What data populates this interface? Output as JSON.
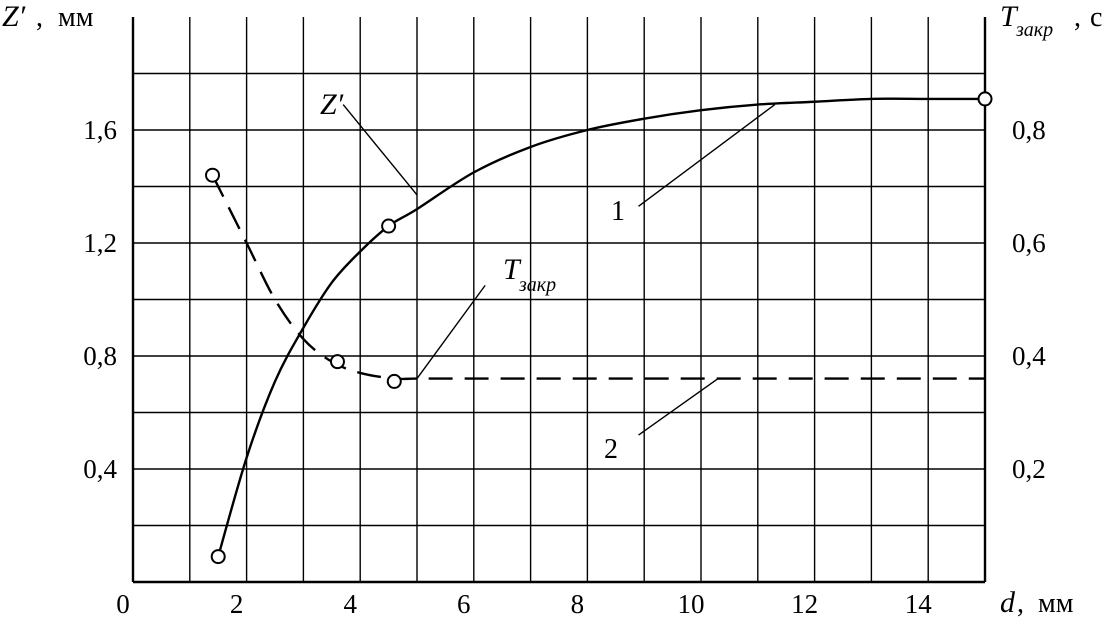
{
  "chart_data": {
    "type": "line",
    "x_axis": {
      "label": "d",
      "unit": "мм",
      "range": [
        0,
        15
      ],
      "ticks": [
        "0",
        "2",
        "4",
        "6",
        "8",
        "10",
        "12",
        "14"
      ]
    },
    "y_left": {
      "label": "Z′",
      "unit": "мм",
      "range": [
        0,
        2
      ],
      "ticks": [
        "0,4",
        "0,8",
        "1,2",
        "1,6"
      ]
    },
    "y_right": {
      "label": "T",
      "label_sub": "закр",
      "unit": "с",
      "range": [
        0,
        1
      ],
      "ticks": [
        "0,2",
        "0,4",
        "0,6",
        "0,8"
      ]
    },
    "grid": true,
    "series": [
      {
        "name": "Z′",
        "axis": "left",
        "curve_number": "1",
        "style": "solid",
        "x": [
          1.5,
          2,
          2.5,
          3,
          3.5,
          4,
          4.5,
          5,
          6,
          7,
          8,
          9,
          10,
          11,
          12,
          13,
          14,
          15
        ],
        "y": [
          0.09,
          0.44,
          0.71,
          0.9,
          1.06,
          1.17,
          1.26,
          1.32,
          1.45,
          1.54,
          1.6,
          1.64,
          1.67,
          1.69,
          1.7,
          1.71,
          1.71,
          1.71
        ],
        "markers_x": [
          1.5,
          4.5,
          15
        ],
        "markers_y": [
          0.09,
          1.26,
          1.71
        ]
      },
      {
        "name": "T",
        "name_sub": "закр",
        "axis": "right",
        "curve_number": "2",
        "style": "dashed",
        "x": [
          1.4,
          2,
          2.5,
          3,
          3.5,
          4,
          4.6,
          5,
          6,
          8,
          10,
          12,
          14,
          15
        ],
        "y": [
          0.72,
          0.6,
          0.5,
          0.43,
          0.39,
          0.37,
          0.36,
          0.36,
          0.36,
          0.36,
          0.36,
          0.36,
          0.36,
          0.36
        ],
        "markers_x": [
          1.4,
          3.6,
          4.6
        ],
        "markers_y": [
          0.72,
          0.39,
          0.355
        ]
      }
    ]
  }
}
